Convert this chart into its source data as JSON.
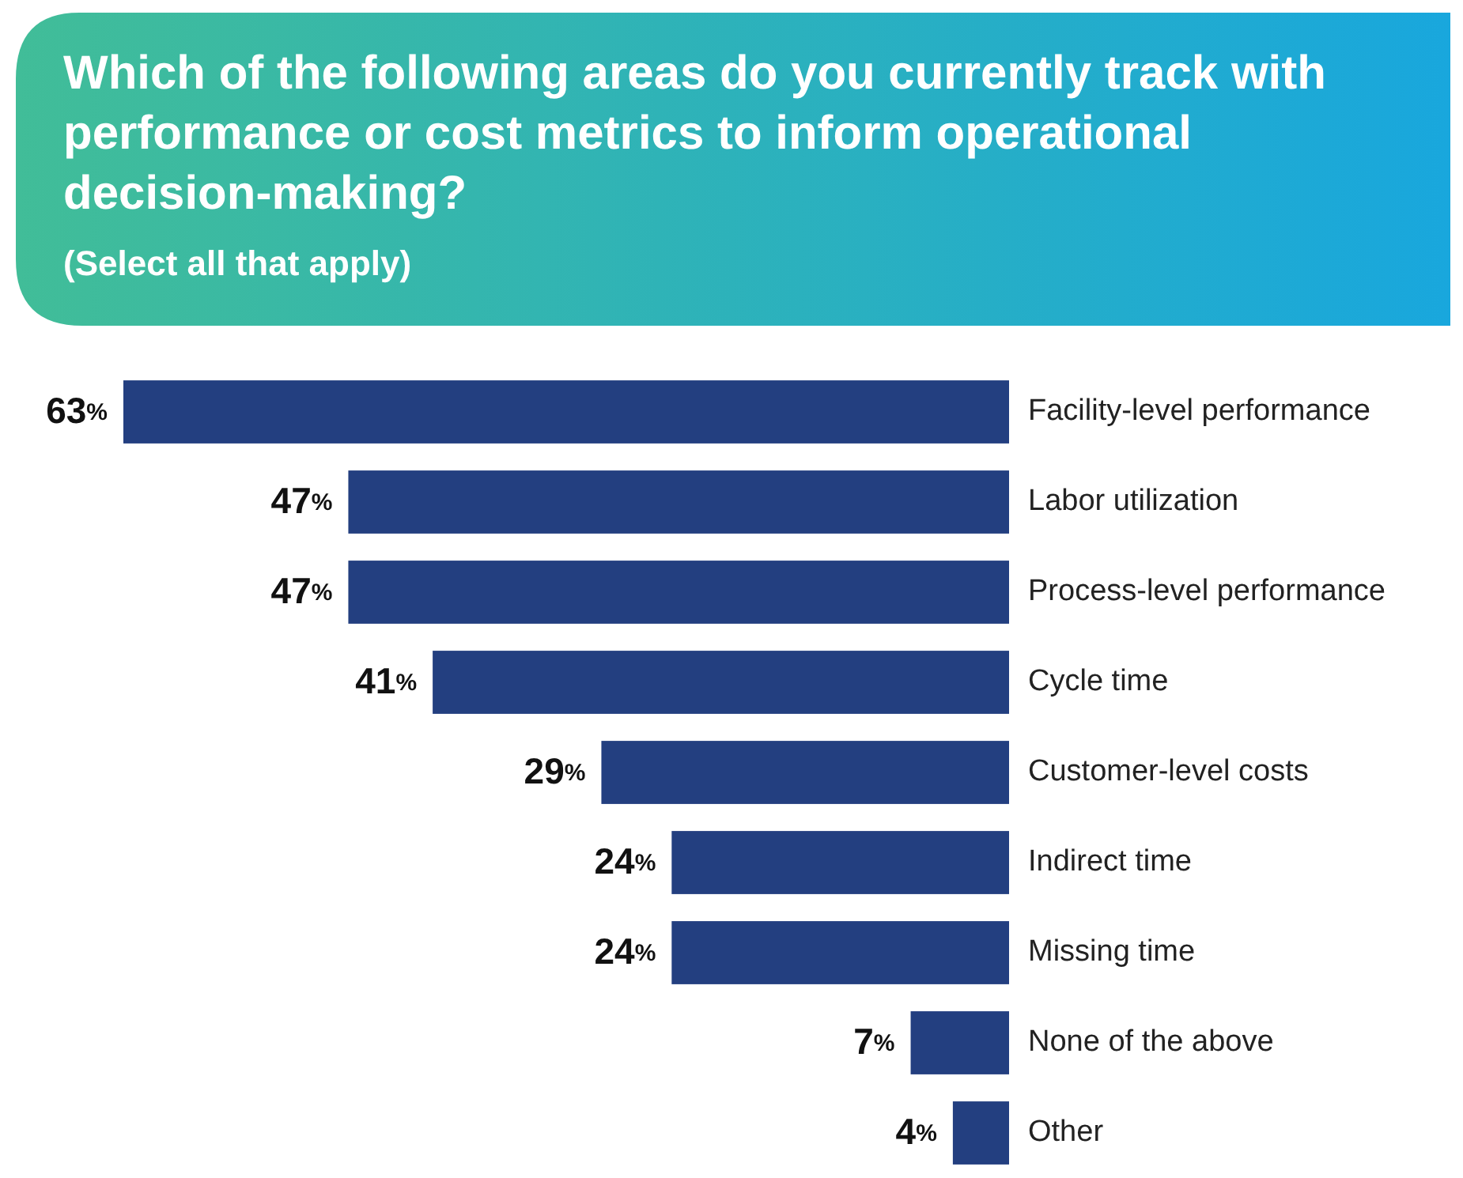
{
  "chart_data": {
    "type": "bar",
    "orientation": "horizontal",
    "title": "Which of the following areas do you currently track with performance or cost metrics to inform operational decision-making?",
    "subtitle": "(Select all that apply)",
    "categories": [
      "Facility-level performance",
      "Labor utilization",
      "Process-level performance",
      "Cycle time",
      "Customer-level costs",
      "Indirect time",
      "Missing time",
      "None of the above",
      "Other"
    ],
    "values": [
      63,
      47,
      47,
      41,
      29,
      24,
      24,
      7,
      4
    ],
    "value_labels": [
      "63%",
      "47%",
      "47%",
      "41%",
      "29%",
      "24%",
      "24%",
      "7%",
      "4%"
    ],
    "color": "#233f80"
  }
}
